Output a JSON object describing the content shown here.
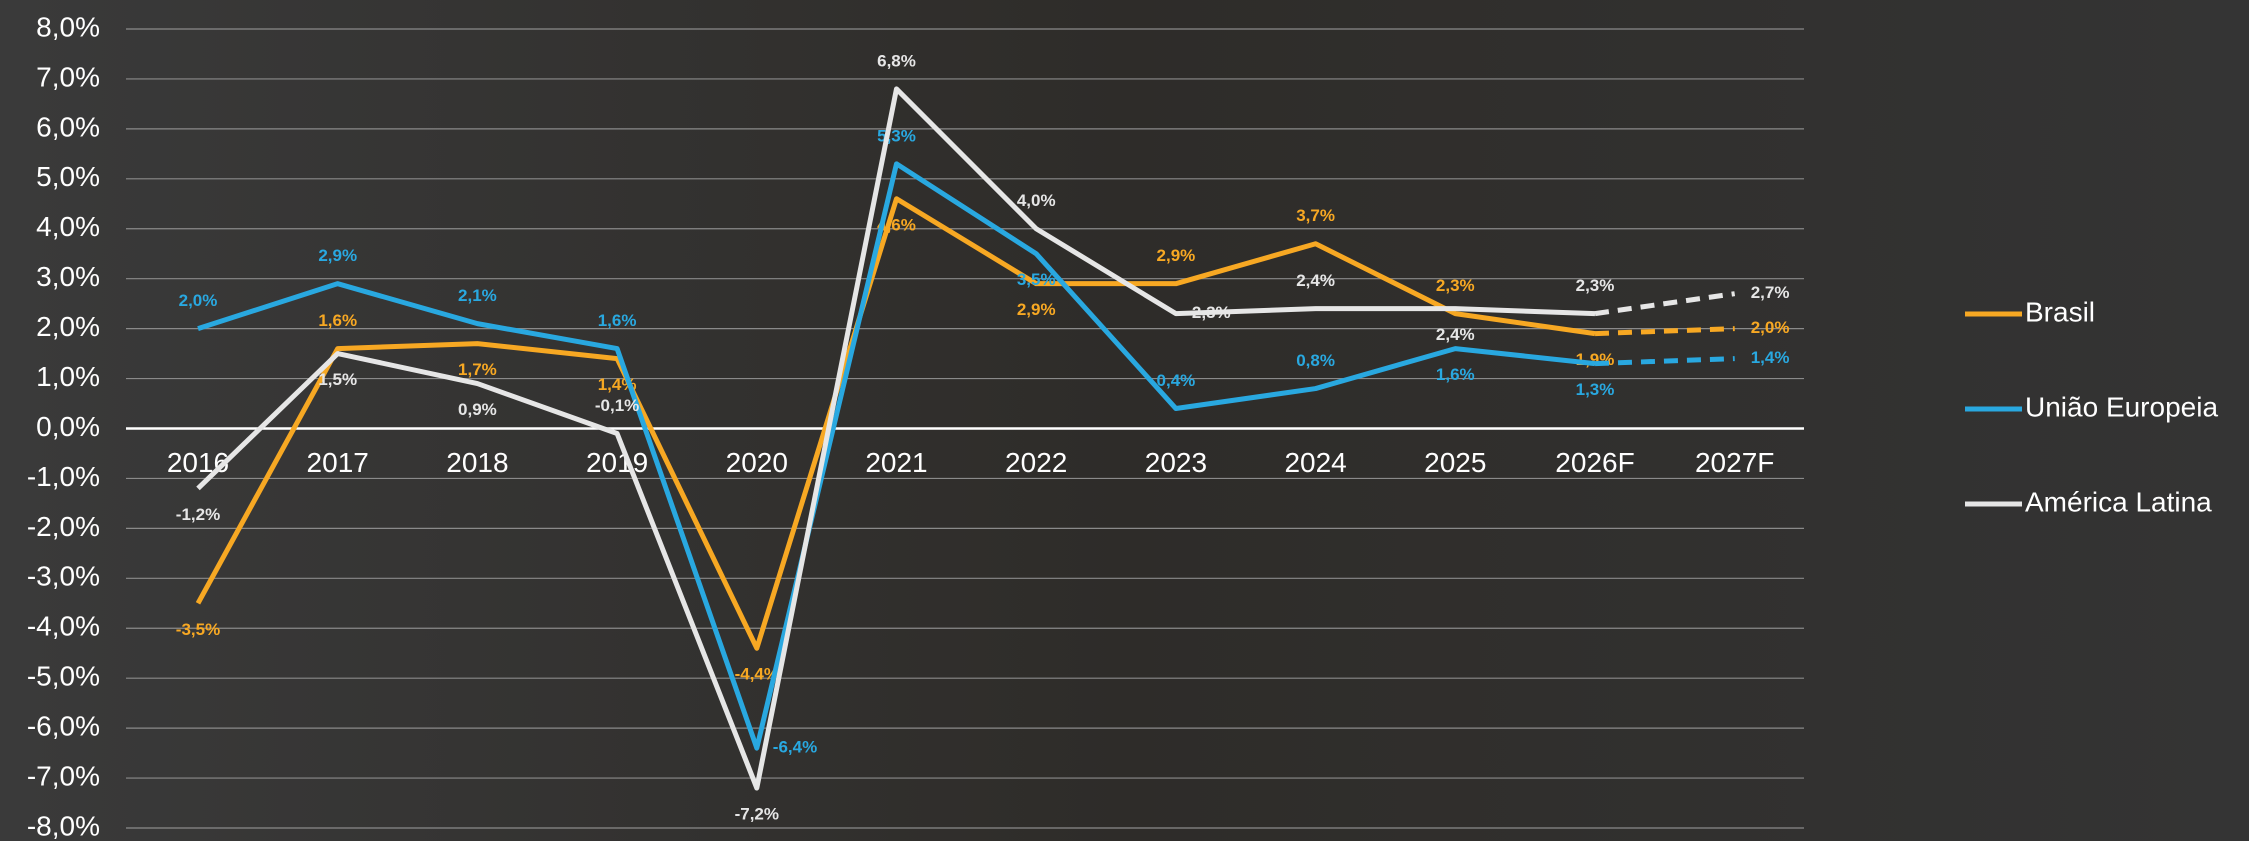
{
  "chart_data": {
    "type": "line",
    "categories": [
      "2016",
      "2017",
      "2018",
      "2019",
      "2020",
      "2021",
      "2022",
      "2023",
      "2024",
      "2025",
      "2026F",
      "2027F"
    ],
    "series": [
      {
        "name": "Brasil",
        "color": "#f7a823",
        "values": [
          -3.5,
          1.6,
          1.7,
          1.4,
          -4.4,
          4.6,
          2.9,
          2.9,
          3.7,
          2.3,
          1.9,
          2.0
        ],
        "value_labels": [
          "-3,5%",
          "1,6%",
          "1,7%",
          "1,4%",
          "-4,4%",
          "4,6%",
          "2,9%",
          "2,9%",
          "3,7%",
          "2,3%",
          "1,9%",
          "2,0%"
        ]
      },
      {
        "name": "União Europeia",
        "color": "#29a8e0",
        "values": [
          2.0,
          2.9,
          2.1,
          1.6,
          -6.4,
          5.3,
          3.5,
          0.4,
          0.8,
          1.6,
          1.3,
          1.4
        ],
        "value_labels": [
          "2,0%",
          "2,9%",
          "2,1%",
          "1,6%",
          "-6,4%",
          "5,3%",
          "3,5%",
          "0,4%",
          "0,8%",
          "1,6%",
          "1,3%",
          "1,4%"
        ]
      },
      {
        "name": "América Latina",
        "color": "#e6e6e6",
        "values": [
          -1.2,
          1.5,
          0.9,
          -0.1,
          -7.2,
          6.8,
          4.0,
          2.3,
          2.4,
          2.4,
          2.3,
          2.7
        ],
        "value_labels": [
          "-1,2%",
          "1,5%",
          "0,9%",
          "-0,1%",
          "-7,2%",
          "6,8%",
          "4,0%",
          "2,3%",
          "2,4%",
          "2,4%",
          "2,3%",
          "2,7%"
        ]
      }
    ],
    "ylim": [
      -8,
      8
    ],
    "yticks": [
      {
        "value": -8,
        "label": "-8,0%"
      },
      {
        "value": -7,
        "label": "-7,0%"
      },
      {
        "value": -6,
        "label": "-6,0%"
      },
      {
        "value": -5,
        "label": "-5,0%"
      },
      {
        "value": -4,
        "label": "-4,0%"
      },
      {
        "value": -3,
        "label": "-3,0%"
      },
      {
        "value": -2,
        "label": "-2,0%"
      },
      {
        "value": -1,
        "label": "-1,0%"
      },
      {
        "value": 0,
        "label": "0,0%"
      },
      {
        "value": 1,
        "label": "1,0%"
      },
      {
        "value": 2,
        "label": "2,0%"
      },
      {
        "value": 3,
        "label": "3,0%"
      },
      {
        "value": 4,
        "label": "4,0%"
      },
      {
        "value": 5,
        "label": "5,0%"
      },
      {
        "value": 6,
        "label": "6,0%"
      },
      {
        "value": 7,
        "label": "7,0%"
      },
      {
        "value": 8,
        "label": "8,0%"
      }
    ],
    "grid": true,
    "dashed_from_index": 10,
    "legend": "right"
  }
}
